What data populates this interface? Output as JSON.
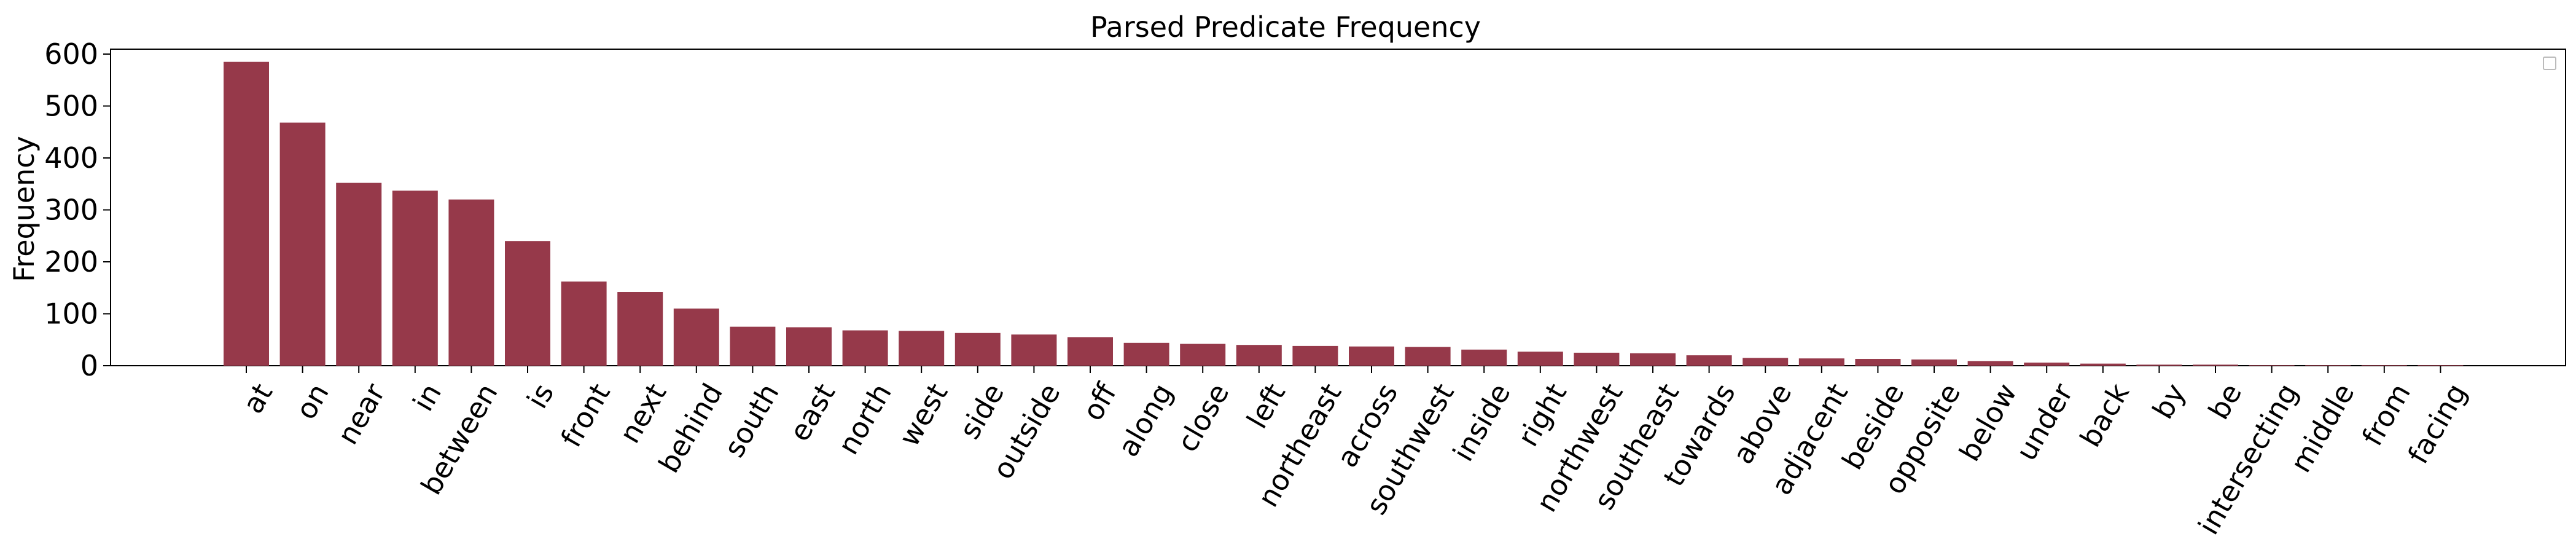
{
  "chart_data": {
    "type": "bar",
    "title": "Parsed Predicate Frequency",
    "xlabel": "",
    "ylabel": "Frequency",
    "ylim": [
      0,
      615
    ],
    "yticks": [
      0,
      100,
      200,
      300,
      400,
      500,
      600
    ],
    "grid": false,
    "legend": "top-right (empty)",
    "bar_color": "#96394a",
    "categories": [
      "at",
      "on",
      "near",
      "in",
      "between",
      "is",
      "front",
      "next",
      "behind",
      "south",
      "east",
      "north",
      "west",
      "side",
      "outside",
      "off",
      "along",
      "close",
      "left",
      "northeast",
      "across",
      "southwest",
      "inside",
      "right",
      "northwest",
      "southeast",
      "towards",
      "above",
      "adjacent",
      "beside",
      "opposite",
      "below",
      "under",
      "back",
      "by",
      "be",
      "intersecting",
      "middle",
      "from",
      "facing"
    ],
    "values": [
      585,
      468,
      352,
      337,
      320,
      240,
      162,
      142,
      110,
      75,
      74,
      68,
      67,
      63,
      60,
      55,
      44,
      42,
      40,
      38,
      37,
      36,
      31,
      27,
      25,
      24,
      20,
      15,
      14,
      13,
      12,
      9,
      6,
      4,
      2,
      2,
      1,
      1,
      1,
      1
    ]
  }
}
